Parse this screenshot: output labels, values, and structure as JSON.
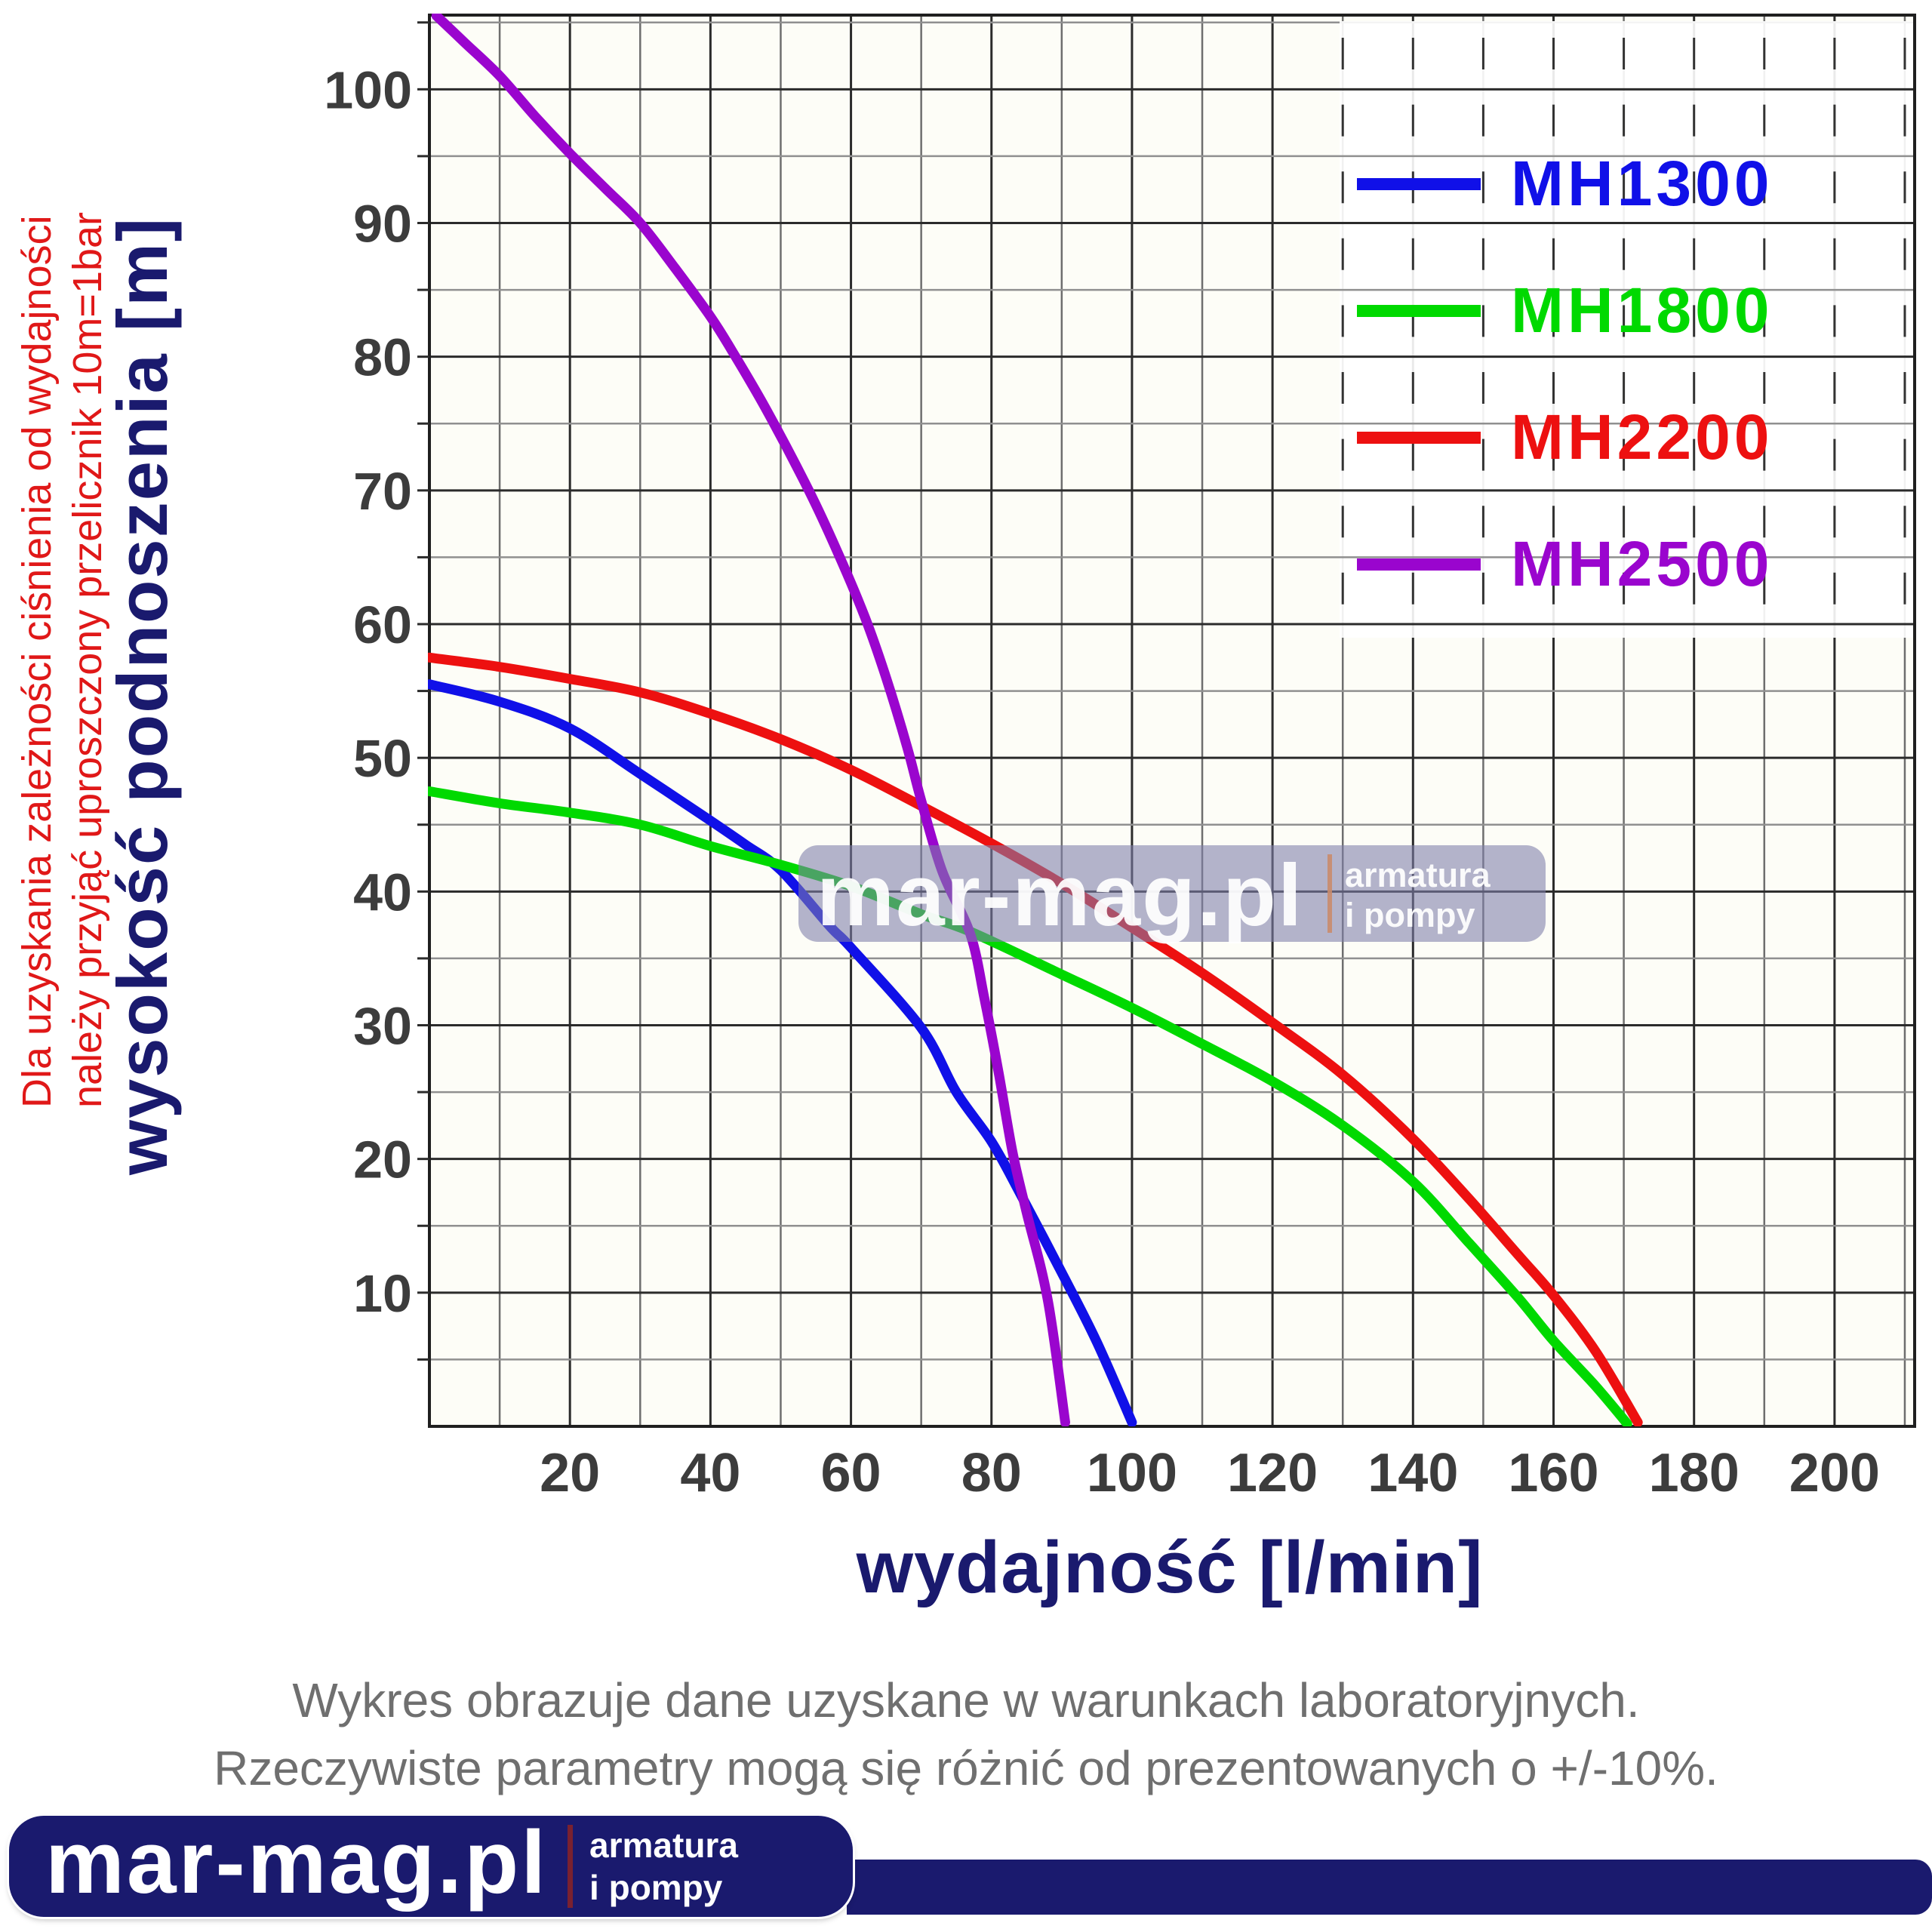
{
  "chart_data": {
    "type": "line",
    "title": "",
    "xlabel": "wydajność [l/min]",
    "ylabel": "wysokość podnoszenia [m]",
    "xlim": [
      0,
      211.4
    ],
    "ylim": [
      0,
      105.55
    ],
    "x_ticks": [
      20,
      40,
      60,
      80,
      100,
      120,
      140,
      160,
      180,
      200
    ],
    "y_ticks": [
      10,
      20,
      30,
      40,
      50,
      60,
      70,
      80,
      90,
      100
    ],
    "grid": {
      "x_step": 10,
      "y_step": 5,
      "x_major_every": 20,
      "y_major_every": 10
    },
    "legend_position": "top-right",
    "series": [
      {
        "name": "MH1300",
        "color": "#1010E8",
        "points": [
          [
            0,
            55.5
          ],
          [
            10,
            54.2
          ],
          [
            20,
            52.2
          ],
          [
            30,
            48.8
          ],
          [
            40,
            45.3
          ],
          [
            45,
            43.5
          ],
          [
            50,
            41.6
          ],
          [
            57,
            37.4
          ],
          [
            60,
            35.8
          ],
          [
            70,
            29.8
          ],
          [
            75,
            25
          ],
          [
            80,
            21.3
          ],
          [
            84,
            17.5
          ],
          [
            90,
            11.5
          ],
          [
            95,
            6.3
          ],
          [
            100,
            0.3
          ]
        ]
      },
      {
        "name": "MH1800",
        "color": "#00D900",
        "points": [
          [
            0,
            47.5
          ],
          [
            10,
            46.6
          ],
          [
            20,
            45.9
          ],
          [
            30,
            45
          ],
          [
            40,
            43.4
          ],
          [
            50,
            42
          ],
          [
            60,
            40.4
          ],
          [
            70,
            38.3
          ],
          [
            77,
            37
          ],
          [
            90,
            33.8
          ],
          [
            100,
            31.3
          ],
          [
            110,
            28.6
          ],
          [
            120,
            25.8
          ],
          [
            130,
            22.5
          ],
          [
            140,
            18.3
          ],
          [
            148,
            13.7
          ],
          [
            155,
            9.6
          ],
          [
            160,
            6.4
          ],
          [
            166,
            3
          ],
          [
            170.5,
            0.2
          ]
        ]
      },
      {
        "name": "MH2200",
        "color": "#ED1010",
        "points": [
          [
            0,
            57.5
          ],
          [
            10,
            56.8
          ],
          [
            20,
            55.9
          ],
          [
            30,
            54.9
          ],
          [
            40,
            53.3
          ],
          [
            50,
            51.4
          ],
          [
            60,
            49.1
          ],
          [
            70,
            46.4
          ],
          [
            80,
            43.6
          ],
          [
            90,
            40.6
          ],
          [
            100,
            37.3
          ],
          [
            110,
            33.9
          ],
          [
            120,
            30.2
          ],
          [
            130,
            26.3
          ],
          [
            140,
            21.5
          ],
          [
            148,
            17
          ],
          [
            155,
            12.8
          ],
          [
            160,
            9.8
          ],
          [
            166,
            5.6
          ],
          [
            172,
            0.3
          ]
        ]
      },
      {
        "name": "MH2500",
        "color": "#9A05CE",
        "points": [
          [
            1,
            105.5
          ],
          [
            5,
            103.5
          ],
          [
            10,
            101
          ],
          [
            15,
            98
          ],
          [
            20,
            95.2
          ],
          [
            25,
            92.6
          ],
          [
            30,
            90
          ],
          [
            35,
            86.6
          ],
          [
            40,
            83
          ],
          [
            43,
            80.5
          ],
          [
            48,
            76
          ],
          [
            54,
            70
          ],
          [
            58,
            65.5
          ],
          [
            62,
            60.5
          ],
          [
            65,
            56
          ],
          [
            68,
            50.8
          ],
          [
            70,
            46.8
          ],
          [
            73,
            41.5
          ],
          [
            77,
            36.8
          ],
          [
            79,
            32
          ],
          [
            81,
            26.5
          ],
          [
            83,
            20.5
          ],
          [
            85,
            16
          ],
          [
            88,
            9.5
          ],
          [
            90.5,
            0.3
          ]
        ]
      }
    ]
  },
  "annotation": {
    "line1": "Dla uzyskania zależności ciśnienia od wydajności",
    "line2": "należy przyjąć uproszczony przelicznik 10m=1bar"
  },
  "watermark": {
    "brand": "mar-mag.pl",
    "tag1": "armatura",
    "tag2": "i pompy"
  },
  "disclaimer": {
    "line1": "Wykres obrazuje dane uzyskane w warunkach laboratoryjnych.",
    "line2": "Rzeczywiste parametry mogą się różnić od prezentowanych o +/-10%."
  },
  "footer": {
    "brand": "mar-mag.pl",
    "tag1": "armatura",
    "tag2": "i pompy"
  },
  "colors": {
    "navy": "#1A1A6E",
    "tick_label": "#3C3C3C",
    "grid_major": "#2B2B2B",
    "grid_minor_x": "#6E6E6E",
    "grid_minor_y": "#909090",
    "spine": "#1F1F1F",
    "plot_bg": "#FDFDF7",
    "annotation_red": "#E01818",
    "disclaimer_gray": "#6F6F6F",
    "watermark_fill": "#7D7DA8",
    "watermark_divider": "#C98B6B",
    "footer_divider": "#7A2130"
  }
}
